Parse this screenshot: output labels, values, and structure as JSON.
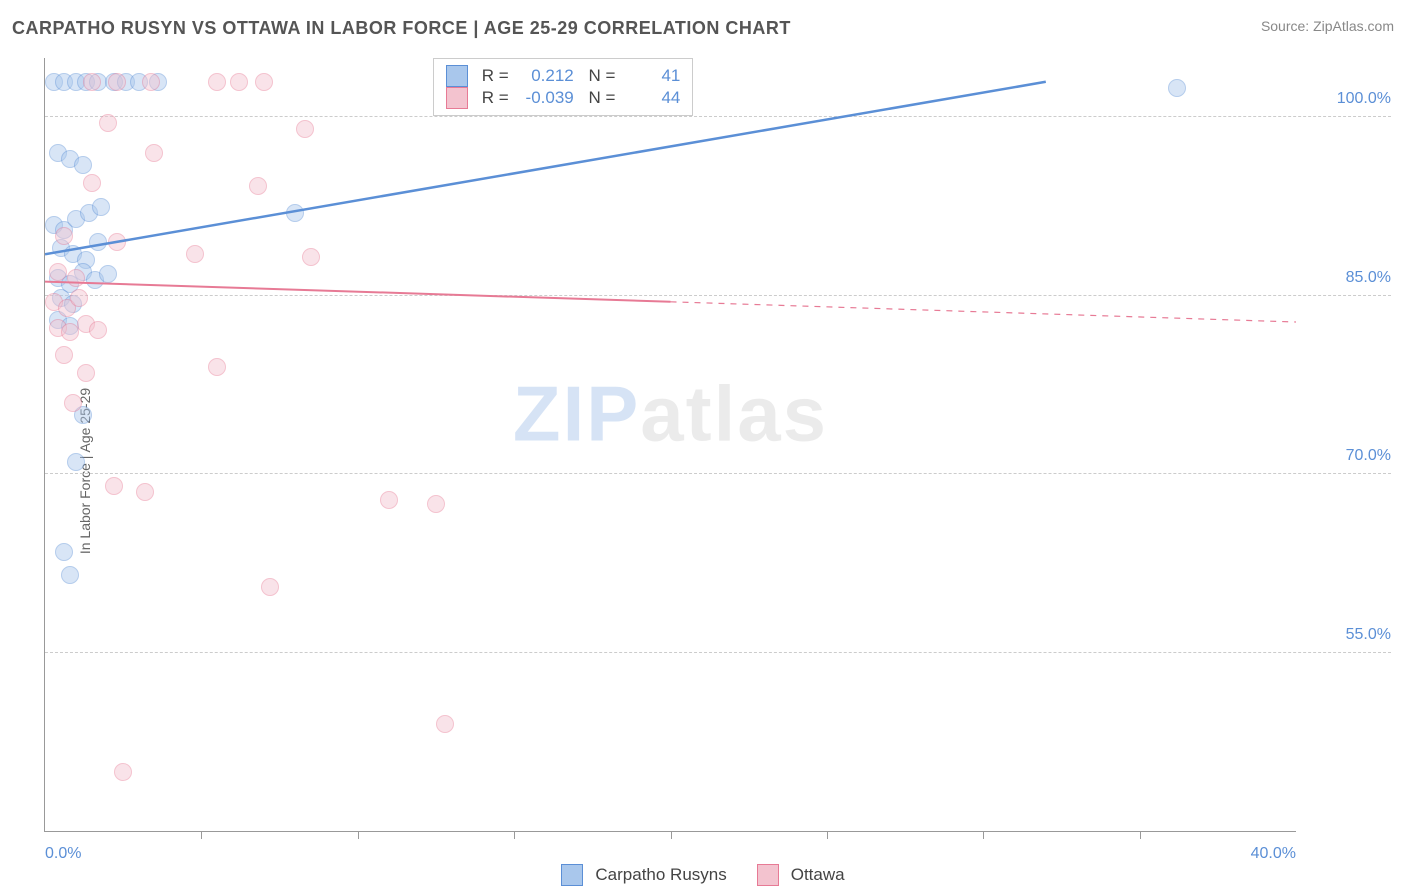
{
  "header": {
    "title": "CARPATHO RUSYN VS OTTAWA IN LABOR FORCE | AGE 25-29 CORRELATION CHART",
    "source": "Source: ZipAtlas.com"
  },
  "ylabel": "In Labor Force | Age 25-29",
  "watermark": {
    "zip": "ZIP",
    "atlas": "atlas"
  },
  "chart": {
    "type": "scatter",
    "xlim": [
      0,
      40
    ],
    "ylim": [
      40,
      105
    ],
    "x_ticks": [
      0,
      5,
      10,
      15,
      20,
      25,
      30,
      35,
      40
    ],
    "x_tick_labels_shown": {
      "0": "0.0%",
      "40": "40.0%"
    },
    "y_ticks": [
      55,
      70,
      85,
      100
    ],
    "y_tick_labels": {
      "55": "55.0%",
      "70": "70.0%",
      "85": "85.0%",
      "100": "100.0%"
    },
    "background_color": "#ffffff",
    "grid_color": "#cccccc",
    "axis_color": "#999999",
    "marker_radius": 9,
    "marker_opacity": 0.45,
    "series": [
      {
        "key": "carpatho",
        "label": "Carpatho Rusyns",
        "fill": "#a9c7ec",
        "stroke": "#5b8fd6",
        "r_label": "R =",
        "r_value": "0.212",
        "n_label": "N =",
        "n_value": "41",
        "trend": {
          "x1": 0,
          "y1": 88.5,
          "x2": 32,
          "y2": 103,
          "dash_after_x": 40,
          "width": 2.5
        },
        "points": [
          [
            0.3,
            103
          ],
          [
            0.6,
            103
          ],
          [
            1.0,
            103
          ],
          [
            1.3,
            103
          ],
          [
            1.7,
            103
          ],
          [
            2.2,
            103
          ],
          [
            2.6,
            103
          ],
          [
            3.0,
            103
          ],
          [
            3.6,
            103
          ],
          [
            36.2,
            102.5
          ],
          [
            0.4,
            97
          ],
          [
            0.8,
            96.5
          ],
          [
            1.2,
            96.0
          ],
          [
            0.3,
            91
          ],
          [
            0.6,
            90.5
          ],
          [
            1.0,
            91.5
          ],
          [
            1.4,
            92
          ],
          [
            1.8,
            92.5
          ],
          [
            8.0,
            92
          ],
          [
            0.5,
            89
          ],
          [
            0.9,
            88.5
          ],
          [
            1.3,
            88
          ],
          [
            1.7,
            89.5
          ],
          [
            0.4,
            86.5
          ],
          [
            0.8,
            86
          ],
          [
            1.2,
            87
          ],
          [
            1.6,
            86.3
          ],
          [
            2.0,
            86.8
          ],
          [
            0.5,
            84.8
          ],
          [
            0.9,
            84.3
          ],
          [
            0.4,
            83.0
          ],
          [
            0.8,
            82.5
          ],
          [
            1.2,
            75
          ],
          [
            1.0,
            71
          ],
          [
            0.6,
            63.5
          ],
          [
            0.8,
            61.5
          ]
        ]
      },
      {
        "key": "ottawa",
        "label": "Ottawa",
        "fill": "#f3c3cf",
        "stroke": "#e77a95",
        "r_label": "R =",
        "r_value": "-0.039",
        "n_label": "N =",
        "n_value": "44",
        "trend": {
          "x1": 0,
          "y1": 86.2,
          "x2": 20,
          "y2": 84.5,
          "dash_after_x": 20,
          "x3": 40,
          "y3": 82.8,
          "width": 2
        },
        "points": [
          [
            1.5,
            103
          ],
          [
            2.3,
            103
          ],
          [
            3.4,
            103
          ],
          [
            5.5,
            103
          ],
          [
            6.2,
            103
          ],
          [
            7.0,
            103
          ],
          [
            2.0,
            99.5
          ],
          [
            8.3,
            99
          ],
          [
            3.5,
            97
          ],
          [
            1.5,
            94.5
          ],
          [
            6.8,
            94.2
          ],
          [
            0.6,
            90
          ],
          [
            2.3,
            89.5
          ],
          [
            4.8,
            88.5
          ],
          [
            8.5,
            88.3
          ],
          [
            0.4,
            87
          ],
          [
            1.0,
            86.5
          ],
          [
            0.3,
            84.5
          ],
          [
            0.7,
            84.0
          ],
          [
            1.1,
            84.8
          ],
          [
            0.4,
            82.3
          ],
          [
            0.8,
            82.0
          ],
          [
            1.3,
            82.6
          ],
          [
            1.7,
            82.1
          ],
          [
            0.6,
            80.0
          ],
          [
            1.3,
            78.5
          ],
          [
            0.9,
            76.0
          ],
          [
            5.5,
            79.0
          ],
          [
            2.2,
            69.0
          ],
          [
            3.2,
            68.5
          ],
          [
            11.0,
            67.8
          ],
          [
            12.5,
            67.5
          ],
          [
            7.2,
            60.5
          ],
          [
            12.8,
            49.0
          ],
          [
            2.5,
            45.0
          ]
        ]
      }
    ],
    "stats_box": {
      "left_pct": 31,
      "top_pct": 0
    }
  }
}
